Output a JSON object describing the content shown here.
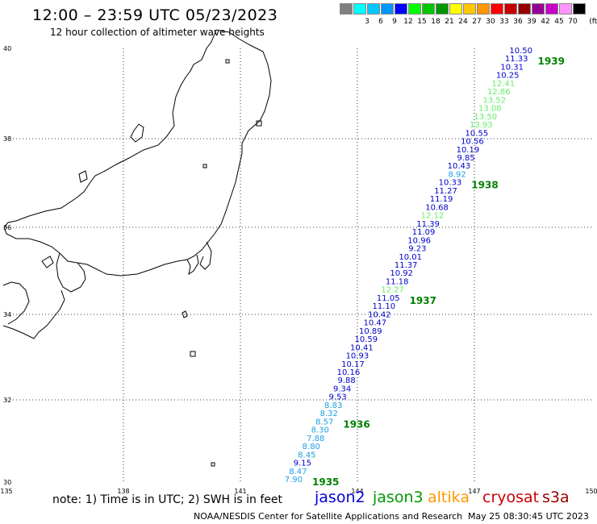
{
  "title": "12:00 – 23:59 UTC 05/23/2023",
  "subtitle": "12 hour collection of altimeter wave heights",
  "legend": {
    "unit": "(ft)",
    "bins": [
      {
        "label": "",
        "color": "#808080"
      },
      {
        "label": "3",
        "color": "#00ffff"
      },
      {
        "label": "6",
        "color": "#00c8ff"
      },
      {
        "label": "9",
        "color": "#0096ff"
      },
      {
        "label": "12",
        "color": "#0000ff"
      },
      {
        "label": "15",
        "color": "#00ff00"
      },
      {
        "label": "18",
        "color": "#00c800"
      },
      {
        "label": "21",
        "color": "#009600"
      },
      {
        "label": "24",
        "color": "#ffff00"
      },
      {
        "label": "27",
        "color": "#ffc800"
      },
      {
        "label": "30",
        "color": "#ff9600"
      },
      {
        "label": "33",
        "color": "#ff0000"
      },
      {
        "label": "36",
        "color": "#c80000"
      },
      {
        "label": "39",
        "color": "#960000"
      },
      {
        "label": "42",
        "color": "#960096"
      },
      {
        "label": "45",
        "color": "#c800c8"
      },
      {
        "label": "70",
        "color": "#ff96ff"
      },
      {
        "label": "",
        "color": "#000000"
      }
    ]
  },
  "axes": {
    "lon_labels": [
      "135",
      "138",
      "141",
      "144",
      "147",
      "150"
    ],
    "lat_labels": [
      "30",
      "32",
      "34",
      "36",
      "38",
      "40"
    ]
  },
  "track": {
    "measurements": [
      {
        "v": "10.50",
        "c": "#0000cc"
      },
      {
        "v": "11.33",
        "c": "#0000cc"
      },
      {
        "v": "10.31",
        "c": "#0000cc"
      },
      {
        "v": "10.25",
        "c": "#0000cc"
      },
      {
        "v": "12.41",
        "c": "#66ee66"
      },
      {
        "v": "12.86",
        "c": "#66ee66"
      },
      {
        "v": "13.52",
        "c": "#66ee66"
      },
      {
        "v": "13.08",
        "c": "#66ee66"
      },
      {
        "v": "13.50",
        "c": "#66ee66"
      },
      {
        "v": "13.93",
        "c": "#66ee66"
      },
      {
        "v": "10.55",
        "c": "#0000cc"
      },
      {
        "v": "10.56",
        "c": "#0000cc"
      },
      {
        "v": "10.19",
        "c": "#0000cc"
      },
      {
        "v": "9.85",
        "c": "#0000cc"
      },
      {
        "v": "10.43",
        "c": "#0000cc"
      },
      {
        "v": "8.92",
        "c": "#1ea0e6"
      },
      {
        "v": "10.33",
        "c": "#0000cc"
      },
      {
        "v": "11.27",
        "c": "#0000cc"
      },
      {
        "v": "11.19",
        "c": "#0000cc"
      },
      {
        "v": "10.68",
        "c": "#0000cc"
      },
      {
        "v": "12.12",
        "c": "#66ee66"
      },
      {
        "v": "11.39",
        "c": "#0000cc"
      },
      {
        "v": "11.09",
        "c": "#0000cc"
      },
      {
        "v": "10.96",
        "c": "#0000cc"
      },
      {
        "v": "9.23",
        "c": "#0000cc"
      },
      {
        "v": "10.01",
        "c": "#0000cc"
      },
      {
        "v": "11.37",
        "c": "#0000cc"
      },
      {
        "v": "10.92",
        "c": "#0000cc"
      },
      {
        "v": "11.18",
        "c": "#0000cc"
      },
      {
        "v": "12.27",
        "c": "#66ee66"
      },
      {
        "v": "11.05",
        "c": "#0000cc"
      },
      {
        "v": "11.10",
        "c": "#0000cc"
      },
      {
        "v": "10.42",
        "c": "#0000cc"
      },
      {
        "v": "10.47",
        "c": "#0000cc"
      },
      {
        "v": "10.89",
        "c": "#0000cc"
      },
      {
        "v": "10.59",
        "c": "#0000cc"
      },
      {
        "v": "10.41",
        "c": "#0000cc"
      },
      {
        "v": "10.93",
        "c": "#0000cc"
      },
      {
        "v": "10.17",
        "c": "#0000cc"
      },
      {
        "v": "10.16",
        "c": "#0000cc"
      },
      {
        "v": "9.88",
        "c": "#0000cc"
      },
      {
        "v": "9.34",
        "c": "#0000cc"
      },
      {
        "v": "9.53",
        "c": "#0000cc"
      },
      {
        "v": "8.83",
        "c": "#1ea0e6"
      },
      {
        "v": "8.32",
        "c": "#1ea0e6"
      },
      {
        "v": "8.57",
        "c": "#1ea0e6"
      },
      {
        "v": "8.30",
        "c": "#1ea0e6"
      },
      {
        "v": "7.88",
        "c": "#1ea0e6"
      },
      {
        "v": "8.80",
        "c": "#1ea0e6"
      },
      {
        "v": "8.45",
        "c": "#1ea0e6"
      },
      {
        "v": "9.15",
        "c": "#0000cc"
      },
      {
        "v": "8.47",
        "c": "#1ea0e6"
      },
      {
        "v": "7.90",
        "c": "#1ea0e6"
      }
    ],
    "times": [
      {
        "label": "1939",
        "after": 1
      },
      {
        "label": "1938",
        "after": 16
      },
      {
        "label": "1937",
        "after": 30
      },
      {
        "label": "1936",
        "after": 45
      },
      {
        "label": "1935",
        "after": 52
      }
    ],
    "time_color": "#008000"
  },
  "note": "note: 1) Time is in UTC; 2) SWH is in feet",
  "satellites": [
    {
      "name": "jason2",
      "color": "#0000dd"
    },
    {
      "name": "jason3",
      "color": "#009900"
    },
    {
      "name": "altika",
      "color": "#ff9900"
    },
    {
      "name": "cryosat",
      "color": "#cc0000"
    },
    {
      "name": "s3a",
      "color": "#990000"
    }
  ],
  "footer": "NOAA/NESDIS Center for Satellite Applications and Research",
  "timestamp": "May 25 08:30:45 UTC 2023"
}
